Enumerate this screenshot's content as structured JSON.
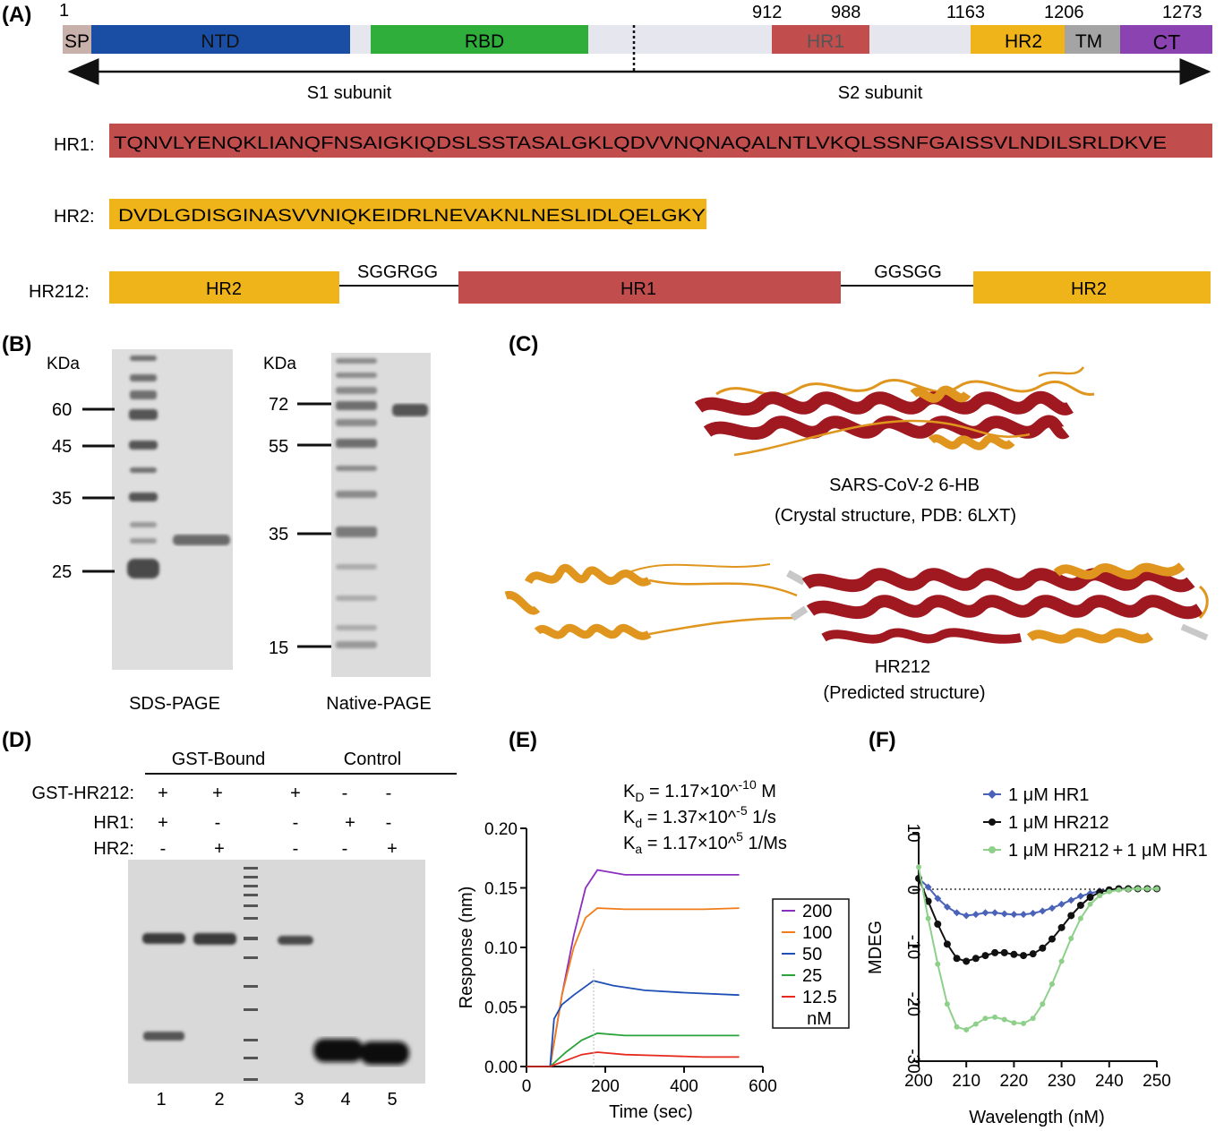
{
  "figure": {
    "panel_labels": [
      "(A)",
      "(B)",
      "(C)",
      "(D)",
      "(E)",
      "(F)"
    ]
  },
  "panel_a": {
    "positions": [
      "1",
      "912",
      "988",
      "1163",
      "1206",
      "1273"
    ],
    "domains": [
      {
        "label": "SP",
        "color": "#c9b1ab"
      },
      {
        "label": "NTD",
        "color": "#1a4ea5"
      },
      {
        "label": "RBD",
        "color": "#2fae3c"
      },
      {
        "label": "HR1",
        "color": "#c24d4d"
      },
      {
        "label": "HR2",
        "color": "#f0b41b"
      },
      {
        "label": "TM",
        "color": "#a4a4a4"
      },
      {
        "label": "CT",
        "color": "#8c43b2"
      }
    ],
    "linker_color": "#e6e6ef",
    "subunits": [
      "S1 subunit",
      "S2 subunit"
    ],
    "hr1_label": "HR1:",
    "hr1_sequence": "TQNVLYENQKLIANQFNSAIGKIQDSLSSTASALGKLQDVVNQNAQALNTLVKQLSSNFGAISSVLNDILSRLDKVE",
    "hr2_label": "HR2:",
    "hr2_sequence": "DVDLGDISGINASVVNIQKEIDRLNEVAKNLNESLIDLQELGKY",
    "hr212_label": "HR212:",
    "hr212_blocks": [
      "HR2",
      "HR1",
      "HR2"
    ],
    "linkers": [
      "SGGRGG",
      "GGSGG"
    ]
  },
  "panel_b": {
    "unit": "KDa",
    "sds_markers": [
      "60",
      "45",
      "35",
      "25"
    ],
    "native_markers": [
      "72",
      "55",
      "35",
      "15"
    ],
    "sds_caption": "SDS-PAGE",
    "native_caption": "Native-PAGE"
  },
  "panel_c": {
    "top_caption_1": "SARS-CoV-2 6-HB",
    "top_caption_2": "(Crystal structure, PDB: 6LXT)",
    "bottom_caption_1": "HR212",
    "bottom_caption_2": "(Predicted structure)",
    "helix_colors": {
      "hr1": "#a01820",
      "hr2": "#e0961e",
      "loop": "#c8c8c8"
    }
  },
  "panel_d": {
    "group_labels": [
      "GST-Bound",
      "Control"
    ],
    "row_labels": [
      "GST-HR212:",
      "HR1:",
      "HR2:"
    ],
    "rows": [
      [
        "+",
        "+",
        "+",
        "-",
        "-"
      ],
      [
        "+",
        "-",
        "-",
        "+",
        "-"
      ],
      [
        "-",
        "+",
        "-",
        "-",
        "+"
      ]
    ],
    "lane_numbers": [
      "1",
      "2",
      "3",
      "4",
      "5"
    ]
  },
  "panel_e": {
    "kd_eq": "K",
    "kd_eq_sub": "D",
    "kd_eq_val": " = 1.17×10^",
    "kd_eq_sup": "-10",
    "kd_eq_unit": " M",
    "kdis": "K",
    "kdis_sub": "d",
    "kdis_val": " = 1.37×10^",
    "kdis_sup": "-5",
    "kdis_unit": " 1/s",
    "kass": "K",
    "kass_sub": "a",
    "kass_val": " = 1.17×10^",
    "kass_sup": "5",
    "kass_unit": " 1/Ms",
    "legend_unit": "nM"
  },
  "panel_f": {},
  "chart_data": [
    {
      "type": "line",
      "panel": "(E)",
      "xlabel": "Time (sec)",
      "ylabel": "Response (nm)",
      "xlim": [
        0,
        600
      ],
      "ylim": [
        0,
        0.2
      ],
      "xticks": [
        "0",
        "200",
        "400",
        "600"
      ],
      "yticks": [
        "0.00",
        "0.05",
        "0.10",
        "0.15",
        "0.20"
      ],
      "legend_position": "right",
      "series": [
        {
          "name": "200",
          "color": "#8b2fc0",
          "x": [
            60,
            90,
            120,
            150,
            180,
            250,
            350,
            450,
            540
          ],
          "values": [
            0,
            0.06,
            0.11,
            0.15,
            0.165,
            0.161,
            0.161,
            0.161,
            0.161
          ]
        },
        {
          "name": "100",
          "color": "#f07d1a",
          "x": [
            60,
            90,
            120,
            150,
            180,
            250,
            350,
            450,
            540
          ],
          "values": [
            0,
            0.06,
            0.1,
            0.125,
            0.133,
            0.132,
            0.132,
            0.132,
            0.133
          ]
        },
        {
          "name": "50",
          "color": "#1f4fb4",
          "x": [
            60,
            70,
            90,
            120,
            170,
            220,
            300,
            400,
            540
          ],
          "values": [
            0,
            0.04,
            0.052,
            0.06,
            0.072,
            0.068,
            0.064,
            0.062,
            0.06
          ]
        },
        {
          "name": "25",
          "color": "#2aa33a",
          "x": [
            60,
            100,
            140,
            180,
            250,
            350,
            450,
            540
          ],
          "values": [
            0,
            0.012,
            0.022,
            0.028,
            0.026,
            0.026,
            0.026,
            0.026
          ]
        },
        {
          "name": "12.5",
          "color": "#e62a1e",
          "x": [
            60,
            100,
            140,
            180,
            250,
            350,
            450,
            540
          ],
          "values": [
            0,
            0.005,
            0.01,
            0.012,
            0.01,
            0.009,
            0.008,
            0.008
          ]
        }
      ]
    },
    {
      "type": "line",
      "panel": "(F)",
      "xlabel": "Wavelength (nM)",
      "ylabel": "MDEG",
      "xlim": [
        200,
        250
      ],
      "ylim": [
        -30,
        10
      ],
      "xticks": [
        "200",
        "210",
        "220",
        "230",
        "240",
        "250"
      ],
      "yticks": [
        "10",
        "0",
        "-10",
        "-20",
        "-30"
      ],
      "legend_position": "top-right",
      "series": [
        {
          "name": "1 μM HR1",
          "color": "#4a63b8",
          "x": [
            200,
            202,
            204,
            206,
            208,
            210,
            212,
            214,
            216,
            218,
            220,
            222,
            224,
            226,
            228,
            230,
            232,
            234,
            236,
            238,
            240,
            242,
            244,
            246,
            248,
            250
          ],
          "values": [
            2,
            0.5,
            -1.5,
            -3,
            -4,
            -4.5,
            -4.3,
            -4,
            -4,
            -4.2,
            -4.3,
            -4.3,
            -4.1,
            -3.7,
            -3.2,
            -2.5,
            -1.8,
            -1.1,
            -0.6,
            -0.2,
            0,
            0.2,
            0.2,
            0.2,
            0.2,
            0.2
          ]
        },
        {
          "name": "1 μM HR212",
          "color": "#111111",
          "x": [
            200,
            202,
            204,
            206,
            208,
            210,
            212,
            214,
            216,
            218,
            220,
            222,
            224,
            226,
            228,
            230,
            232,
            234,
            236,
            238,
            240,
            242,
            244,
            246,
            248,
            250
          ],
          "values": [
            2,
            -2,
            -6,
            -9.5,
            -12,
            -12.5,
            -12,
            -11.5,
            -11,
            -11,
            -11.3,
            -11.5,
            -11.2,
            -10.2,
            -8.6,
            -6.6,
            -4.5,
            -2.7,
            -1.3,
            -0.4,
            0,
            0.2,
            0.2,
            0.2,
            0.2,
            0.2
          ]
        },
        {
          "name": "1 μM HR212 + 1 μM HR1",
          "color": "#8ed08a",
          "x": [
            200,
            202,
            204,
            206,
            208,
            210,
            212,
            214,
            216,
            218,
            220,
            222,
            224,
            226,
            228,
            230,
            232,
            234,
            236,
            238,
            240,
            242,
            244,
            246,
            248,
            250
          ],
          "values": [
            4,
            -5,
            -13,
            -20,
            -24,
            -24.5,
            -23.5,
            -22.5,
            -22.3,
            -22.7,
            -23.3,
            -23.4,
            -22.5,
            -20,
            -16.5,
            -12.5,
            -8.5,
            -5,
            -2.5,
            -1,
            -0.3,
            0,
            0.1,
            0.2,
            0.2,
            0.2
          ]
        }
      ]
    }
  ]
}
